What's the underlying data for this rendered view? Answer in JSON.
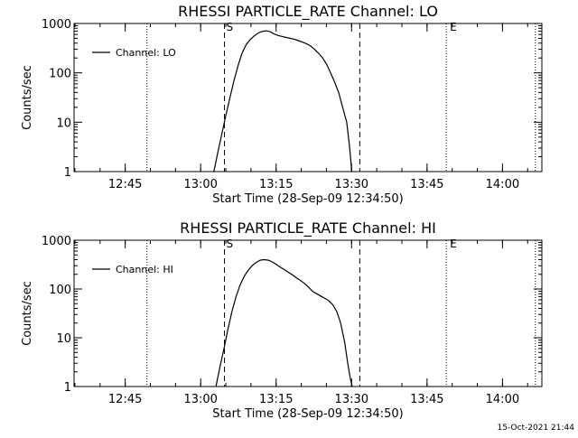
{
  "timestamp": "15-Oct-2021 21:44",
  "chart_data": [
    {
      "type": "line",
      "title": "RHESSI PARTICLE_RATE Channel: LO",
      "xlabel": "Start Time (28-Sep-09 12:34:50)",
      "ylabel": "Counts/sec",
      "x_unit": "minutes after 12:34:50",
      "xlim": [
        0,
        93
      ],
      "ylim": [
        1,
        1000
      ],
      "y_scale": "log",
      "grid": false,
      "legend_placement": "top-left",
      "xticks": [
        {
          "label": "12:45",
          "x": 10.17
        },
        {
          "label": "13:00",
          "x": 25.17
        },
        {
          "label": "13:15",
          "x": 40.17
        },
        {
          "label": "13:30",
          "x": 55.17
        },
        {
          "label": "13:45",
          "x": 70.17
        },
        {
          "label": "14:00",
          "x": 85.17
        }
      ],
      "yticks": [
        {
          "label": "1",
          "y": 1
        },
        {
          "label": "10",
          "y": 10
        },
        {
          "label": "100",
          "y": 100
        },
        {
          "label": "1000",
          "y": 1000
        }
      ],
      "dashed_lines": [
        {
          "x": 29.9,
          "label": "S"
        },
        {
          "x": 56.8,
          "label": ""
        }
      ],
      "dotted_lines": [
        {
          "x": 14.5,
          "label": ""
        },
        {
          "x": 74.0,
          "label": "E"
        },
        {
          "x": 91.7,
          "label": ""
        }
      ],
      "series": [
        {
          "name": "Channel: LO",
          "color": "#000000",
          "x": [
            27.8,
            28.6,
            29.4,
            30.2,
            31.0,
            31.8,
            32.6,
            33.4,
            34.2,
            35.0,
            35.8,
            36.6,
            37.4,
            38.2,
            39.0,
            39.8,
            40.6,
            41.4,
            42.2,
            43.0,
            43.8,
            44.6,
            45.4,
            46.2,
            47.0,
            47.8,
            48.6,
            49.4,
            50.2,
            51.0,
            51.8,
            52.6,
            53.4,
            54.2,
            54.8,
            55.2
          ],
          "y": [
            1,
            2.5,
            6,
            14,
            32,
            70,
            140,
            250,
            370,
            470,
            560,
            640,
            690,
            710,
            680,
            610,
            570,
            545,
            520,
            500,
            480,
            450,
            420,
            390,
            350,
            300,
            250,
            200,
            150,
            100,
            65,
            40,
            20,
            10,
            3,
            1
          ]
        }
      ]
    },
    {
      "type": "line",
      "title": "RHESSI PARTICLE_RATE Channel: HI",
      "xlabel": "Start Time (28-Sep-09 12:34:50)",
      "ylabel": "Counts/sec",
      "x_unit": "minutes after 12:34:50",
      "xlim": [
        0,
        93
      ],
      "ylim": [
        1,
        1000
      ],
      "y_scale": "log",
      "grid": false,
      "legend_placement": "top-left",
      "xticks": [
        {
          "label": "12:45",
          "x": 10.17
        },
        {
          "label": "13:00",
          "x": 25.17
        },
        {
          "label": "13:15",
          "x": 40.17
        },
        {
          "label": "13:30",
          "x": 55.17
        },
        {
          "label": "13:45",
          "x": 70.17
        },
        {
          "label": "14:00",
          "x": 85.17
        }
      ],
      "yticks": [
        {
          "label": "1",
          "y": 1
        },
        {
          "label": "10",
          "y": 10
        },
        {
          "label": "100",
          "y": 100
        },
        {
          "label": "1000",
          "y": 1000
        }
      ],
      "dashed_lines": [
        {
          "x": 29.9,
          "label": "S"
        },
        {
          "x": 56.8,
          "label": ""
        }
      ],
      "dotted_lines": [
        {
          "x": 14.5,
          "label": ""
        },
        {
          "x": 74.0,
          "label": "E"
        },
        {
          "x": 91.7,
          "label": ""
        }
      ],
      "series": [
        {
          "name": "Channel: HI",
          "color": "#000000",
          "x": [
            28.2,
            29.0,
            29.8,
            30.6,
            31.4,
            32.2,
            33.0,
            33.8,
            34.6,
            35.4,
            36.2,
            37.0,
            37.8,
            38.6,
            39.4,
            40.2,
            41.0,
            41.8,
            42.6,
            43.4,
            44.2,
            45.0,
            45.8,
            46.6,
            47.4,
            48.2,
            49.0,
            49.8,
            50.6,
            51.4,
            52.2,
            53.0,
            53.8,
            54.4,
            54.9,
            55.3
          ],
          "y": [
            1,
            2.5,
            6,
            15,
            35,
            70,
            120,
            180,
            240,
            300,
            350,
            390,
            400,
            390,
            360,
            320,
            280,
            250,
            220,
            195,
            170,
            150,
            130,
            110,
            90,
            80,
            72,
            65,
            58,
            48,
            35,
            20,
            8,
            3,
            1.5,
            1
          ]
        }
      ]
    }
  ]
}
